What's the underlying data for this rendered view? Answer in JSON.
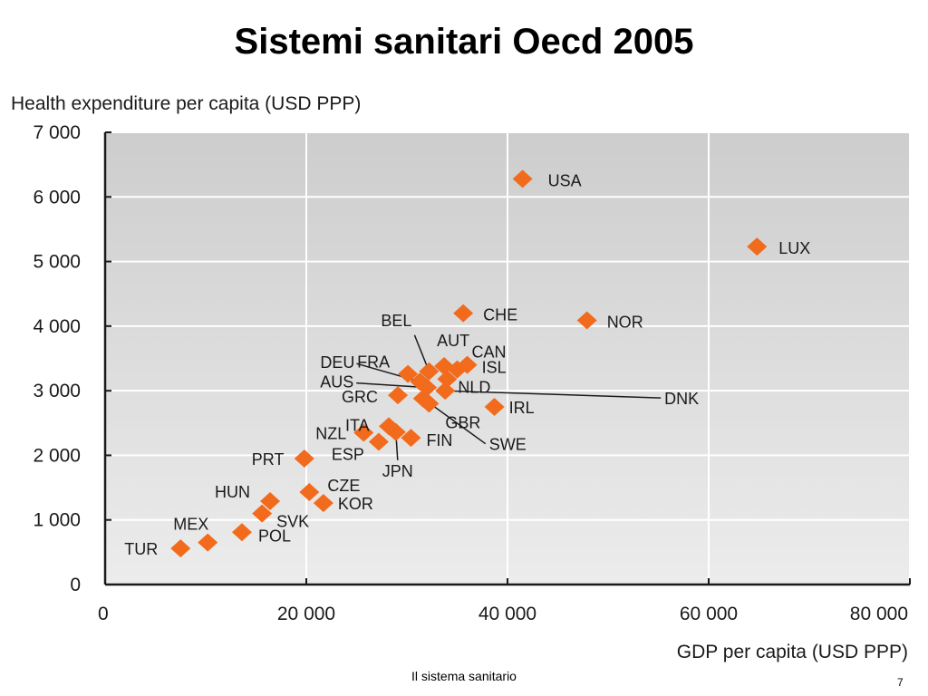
{
  "slide": {
    "title": "Sistemi sanitari Oecd 2005",
    "footer": "Il sistema sanitario",
    "page_number": "7"
  },
  "colors": {
    "marker": "#f26b1d",
    "plot_background": "#e2e2e2",
    "gridline": "#ffffff",
    "axis": "#1a1a1a"
  },
  "chart_data": {
    "type": "scatter",
    "ylabel": "Health expenditure per capita (USD PPP)",
    "xlabel": "GDP per capita (USD PPP)",
    "xlim": [
      0,
      80000
    ],
    "ylim": [
      0,
      7000
    ],
    "x_ticks": [
      0,
      20000,
      40000,
      60000,
      80000
    ],
    "x_tick_labels": [
      "0",
      "20 000",
      "40 000",
      "60 000",
      "80 000"
    ],
    "y_ticks": [
      0,
      1000,
      2000,
      3000,
      4000,
      5000,
      6000,
      7000
    ],
    "y_tick_labels": [
      "0",
      "1 000",
      "2 000",
      "3 000",
      "4 000",
      "5 000",
      "6 000",
      "7 000"
    ],
    "grid": true,
    "points": [
      {
        "label": "USA",
        "x": 41500,
        "y": 6280
      },
      {
        "label": "LUX",
        "x": 64800,
        "y": 5230
      },
      {
        "label": "CHE",
        "x": 35600,
        "y": 4200
      },
      {
        "label": "NOR",
        "x": 47900,
        "y": 4090
      },
      {
        "label": "CAN",
        "x": 35000,
        "y": 3330
      },
      {
        "label": "ISL",
        "x": 36000,
        "y": 3400
      },
      {
        "label": "AUT",
        "x": 33700,
        "y": 3380
      },
      {
        "label": "BEL",
        "x": 32200,
        "y": 3300
      },
      {
        "label": "FRA",
        "x": 30100,
        "y": 3260
      },
      {
        "label": "DEU",
        "x": 31300,
        "y": 3140
      },
      {
        "label": "NLD",
        "x": 34000,
        "y": 3180
      },
      {
        "label": "AUS",
        "x": 32000,
        "y": 3050
      },
      {
        "label": "DNK",
        "x": 33800,
        "y": 3000
      },
      {
        "label": "IRL",
        "x": 38700,
        "y": 2750
      },
      {
        "label": "GRC",
        "x": 29100,
        "y": 2930
      },
      {
        "label": "GBR",
        "x": 32200,
        "y": 2800
      },
      {
        "label": "SWE",
        "x": 31600,
        "y": 2880
      },
      {
        "label": "ITA",
        "x": 28200,
        "y": 2450
      },
      {
        "label": "FIN",
        "x": 30400,
        "y": 2270
      },
      {
        "label": "JPN",
        "x": 28900,
        "y": 2360
      },
      {
        "label": "NZL",
        "x": 25700,
        "y": 2350
      },
      {
        "label": "ESP",
        "x": 27200,
        "y": 2210
      },
      {
        "label": "PRT",
        "x": 19800,
        "y": 1950
      },
      {
        "label": "CZE",
        "x": 20300,
        "y": 1430
      },
      {
        "label": "KOR",
        "x": 21700,
        "y": 1260
      },
      {
        "label": "HUN",
        "x": 16400,
        "y": 1290
      },
      {
        "label": "SVK",
        "x": 15600,
        "y": 1100
      },
      {
        "label": "POL",
        "x": 13600,
        "y": 810
      },
      {
        "label": "MEX",
        "x": 10200,
        "y": 650
      },
      {
        "label": "TUR",
        "x": 7500,
        "y": 560
      }
    ]
  }
}
